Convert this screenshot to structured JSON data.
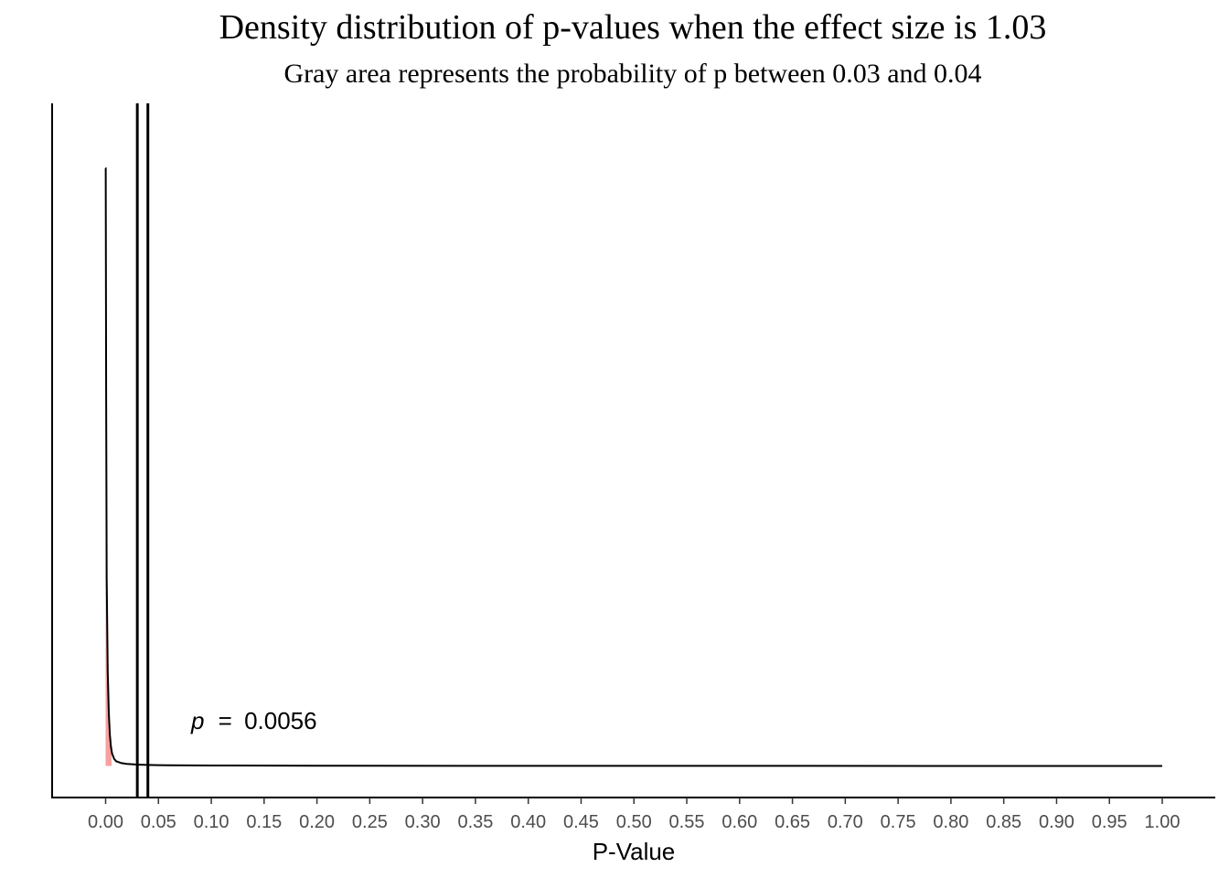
{
  "chart_data": {
    "type": "area",
    "title": "Density distribution of p-values when the effect size is 1.03",
    "subtitle": "Gray area represents the probability of p between 0.03 and 0.04",
    "xlabel": "P-Value",
    "ylabel": "",
    "xlim": [
      -0.05,
      1.05
    ],
    "x_ticks": [
      0.0,
      0.05,
      0.1,
      0.15,
      0.2,
      0.25,
      0.3,
      0.35,
      0.4,
      0.45,
      0.5,
      0.55,
      0.6,
      0.65,
      0.7,
      0.75,
      0.8,
      0.85,
      0.9,
      0.95,
      1.0
    ],
    "x_tick_labels": [
      "0.00",
      "0.05",
      "0.10",
      "0.15",
      "0.20",
      "0.25",
      "0.30",
      "0.35",
      "0.40",
      "0.45",
      "0.50",
      "0.55",
      "0.60",
      "0.65",
      "0.70",
      "0.75",
      "0.80",
      "0.85",
      "0.90",
      "0.95",
      "1.00"
    ],
    "series": [
      {
        "x": [
          0.0001,
          0.0005,
          0.001,
          0.002,
          0.003,
          0.004,
          0.005,
          0.006,
          0.008,
          0.01,
          0.015,
          0.02,
          0.03,
          0.04,
          0.05,
          0.06,
          0.1,
          0.2,
          0.4,
          0.6,
          0.8,
          1.0
        ],
        "y": [
          190,
          120,
          60,
          30,
          17,
          10,
          6.2,
          4.1,
          2.3,
          1.5,
          0.9,
          0.65,
          0.45,
          0.34,
          0.27,
          0.22,
          0.14,
          0.08,
          0.04,
          0.025,
          0.015,
          0.01
        ]
      }
    ],
    "ylim": [
      0,
      200
    ],
    "shaded_region": {
      "from": 0,
      "to": 0.0056,
      "color": "#f8a0a0"
    },
    "vlines": [
      0.03,
      0.04
    ],
    "annotation": {
      "label": "p",
      "operator": "=",
      "value": "0.0056",
      "x": 0.08
    },
    "grid": false,
    "line_color": "#000000"
  }
}
